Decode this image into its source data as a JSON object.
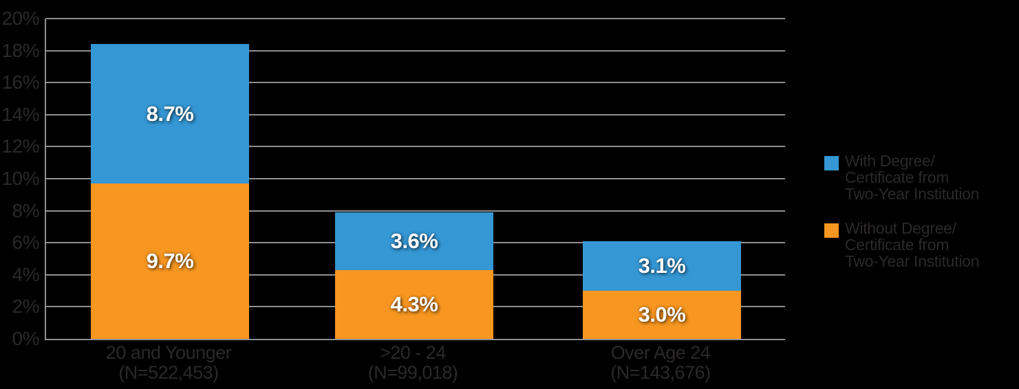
{
  "chart_data": {
    "type": "bar",
    "subtype": "stacked",
    "title": "",
    "categories": [
      {
        "label": "20 and Younger",
        "n_label": "(N=522,453)"
      },
      {
        "label": ">20 - 24",
        "n_label": "(N=99,018)"
      },
      {
        "label": "Over Age 24",
        "n_label": "(N=143,676)"
      }
    ],
    "series": [
      {
        "name": "Without Degree/Certificate from Two-Year Institution",
        "color": "#F79620",
        "stack_position": "bottom",
        "values": [
          9.7,
          4.3,
          3.0
        ],
        "labels": [
          "9.7%",
          "4.3%",
          "3.0%"
        ]
      },
      {
        "name": "With Degree/Certificate from Two-Year Institution",
        "color": "#3597D4",
        "stack_position": "top",
        "values": [
          8.7,
          3.6,
          3.1
        ],
        "labels": [
          "8.7%",
          "3.6%",
          "3.1%"
        ]
      }
    ],
    "ylim": [
      0,
      20
    ],
    "ytick_step": 2,
    "yticks": [
      "0%",
      "2%",
      "4%",
      "6%",
      "8%",
      "10%",
      "12%",
      "14%",
      "16%",
      "18%",
      "20%"
    ],
    "grid": true,
    "legend_position": "right",
    "legend": [
      {
        "color": "#3597D4",
        "label": "With Degree/\nCertificate from\nTwo-Year Institution"
      },
      {
        "color": "#F79620",
        "label": "Without Degree/\nCertificate from\nTwo-Year Institution"
      }
    ],
    "colors": {
      "background": "#000000",
      "grid": "#8E9093",
      "axis": "#8E9093",
      "tick_label": "#2B2829",
      "value_label": "#FFFFFF"
    }
  }
}
